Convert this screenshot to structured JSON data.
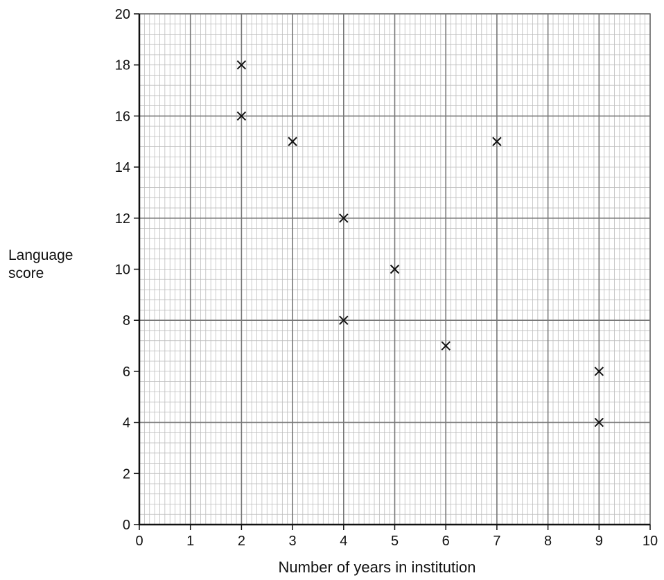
{
  "chart_data": {
    "type": "scatter",
    "title": "",
    "xlabel": "Number of years in institution",
    "ylabel": [
      "Language",
      "score"
    ],
    "xlim": [
      0,
      10
    ],
    "ylim": [
      0,
      20
    ],
    "x_ticks": [
      0,
      1,
      2,
      3,
      4,
      5,
      6,
      7,
      8,
      9,
      10
    ],
    "y_ticks": [
      0,
      2,
      4,
      6,
      8,
      10,
      12,
      14,
      16,
      18,
      20
    ],
    "grid": true,
    "marker": "×",
    "points": [
      {
        "x": 2,
        "y": 18
      },
      {
        "x": 2,
        "y": 16
      },
      {
        "x": 3,
        "y": 15
      },
      {
        "x": 4,
        "y": 12
      },
      {
        "x": 4,
        "y": 8
      },
      {
        "x": 5,
        "y": 10
      },
      {
        "x": 6,
        "y": 7
      },
      {
        "x": 7,
        "y": 15
      },
      {
        "x": 9,
        "y": 6
      },
      {
        "x": 9,
        "y": 4
      }
    ],
    "colors": {
      "marker": "#111111",
      "major_grid": "#777777",
      "minor_grid": "#bdbdbd",
      "axis": "#111111"
    }
  }
}
